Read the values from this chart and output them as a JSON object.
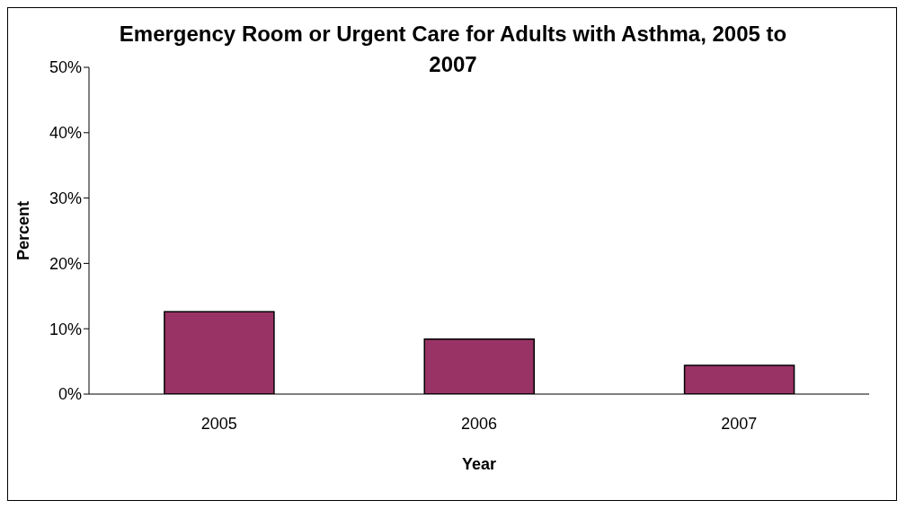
{
  "chart_data": {
    "type": "bar",
    "title": "Emergency Room or Urgent Care for Adults with Asthma, 2005 to 2007",
    "xlabel": "Year",
    "ylabel": "Percent",
    "categories": [
      "2005",
      "2006",
      "2007"
    ],
    "values": [
      12.6,
      8.4,
      4.4
    ],
    "color": "#993366",
    "ylim": [
      0,
      50
    ],
    "yticks": [
      {
        "value": 0,
        "label": "0%"
      },
      {
        "value": 10,
        "label": "10%"
      },
      {
        "value": 20,
        "label": "20%"
      },
      {
        "value": 30,
        "label": "30%"
      },
      {
        "value": 40,
        "label": "40%"
      },
      {
        "value": 50,
        "label": "50%"
      }
    ],
    "grid": false,
    "legend": false
  }
}
